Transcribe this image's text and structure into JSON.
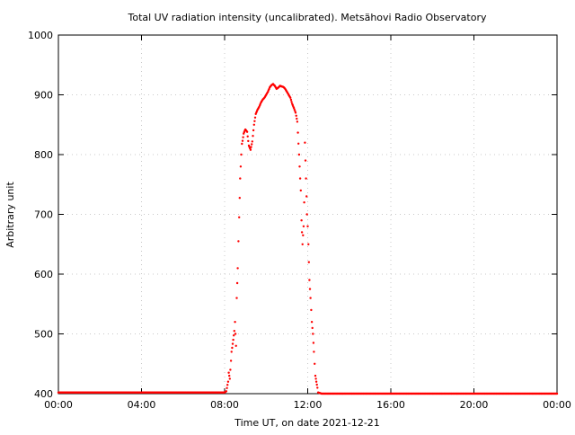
{
  "chart_data": {
    "type": "scatter",
    "title": "Total UV radiation intensity (uncalibrated). Metsähovi Radio Observatory",
    "xlabel": "Time UT, on date 2021-12-21",
    "ylabel": "Arbitrary unit",
    "xlim": [
      "00:00",
      "24:00"
    ],
    "ylim": [
      400,
      1000
    ],
    "x_ticks": [
      "00:00",
      "04:00",
      "08:00",
      "12:00",
      "16:00",
      "20:00",
      "00:00"
    ],
    "y_ticks": [
      400,
      500,
      600,
      700,
      800,
      900,
      1000
    ],
    "grid": true,
    "legend": "none",
    "marker_color": "#ff0000",
    "series": [
      {
        "x": [
          "00:00",
          "08:00",
          "08:05",
          "08:10",
          "08:12",
          "08:15",
          "08:20",
          "08:25",
          "08:28",
          "08:30",
          "08:33",
          "08:35",
          "08:38",
          "08:40",
          "08:42",
          "08:45",
          "08:48",
          "08:50",
          "08:52",
          "08:55",
          "08:58",
          "09:00",
          "09:05",
          "09:10",
          "09:15",
          "09:20",
          "09:25",
          "09:30",
          "09:35",
          "09:40",
          "09:45",
          "09:50",
          "09:55",
          "10:00",
          "10:05",
          "10:10",
          "10:15",
          "10:20",
          "10:25",
          "10:30",
          "10:35",
          "10:40",
          "10:45",
          "10:50",
          "10:55",
          "11:00",
          "11:05",
          "11:10",
          "11:15",
          "11:20",
          "11:25",
          "11:30",
          "11:35",
          "11:40",
          "11:42",
          "11:45",
          "11:48",
          "11:50",
          "11:52",
          "11:55",
          "11:58",
          "12:00",
          "12:02",
          "12:05",
          "12:08",
          "12:10",
          "12:12",
          "12:15",
          "12:18",
          "12:20",
          "12:22",
          "12:25",
          "12:28",
          "12:30",
          "12:35",
          "12:40",
          "24:00"
        ],
        "y": [
          402,
          402,
          404,
          420,
          435,
          425,
          470,
          490,
          505,
          520,
          480,
          560,
          610,
          655,
          695,
          760,
          800,
          818,
          823,
          835,
          840,
          842,
          838,
          815,
          808,
          822,
          850,
          868,
          875,
          880,
          887,
          892,
          895,
          900,
          905,
          912,
          916,
          918,
          915,
          910,
          912,
          915,
          914,
          913,
          910,
          905,
          900,
          895,
          885,
          878,
          870,
          855,
          800,
          740,
          690,
          650,
          680,
          720,
          820,
          760,
          700,
          680,
          650,
          590,
          560,
          540,
          520,
          500,
          470,
          450,
          430,
          420,
          410,
          402,
          401,
          400,
          400
        ]
      }
    ]
  }
}
